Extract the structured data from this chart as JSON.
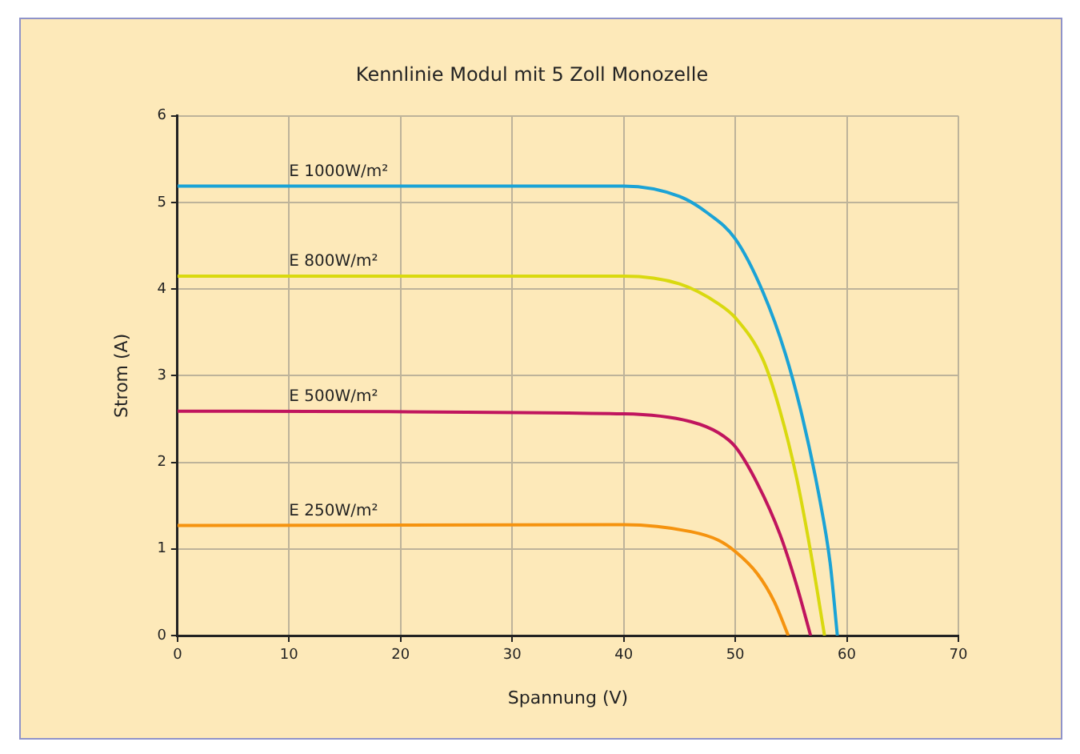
{
  "chart_data": {
    "type": "line",
    "title": "Kennlinie Modul mit 5 Zoll Monozelle",
    "xlabel": "Spannung (V)",
    "ylabel": "Strom (A)",
    "xlim": [
      0,
      70
    ],
    "xticks": [
      0,
      10,
      20,
      30,
      40,
      50,
      60,
      70
    ],
    "ylim": [
      0,
      6
    ],
    "yticks": [
      0,
      1,
      2,
      3,
      4,
      5,
      6
    ],
    "grid": true,
    "legend": false,
    "marker": "none",
    "line_style": "solid",
    "series": [
      {
        "name": "E 1000W/m²",
        "color": "#1ba3d6",
        "x": [
          0,
          40,
          45,
          47.5,
          50,
          52.5,
          54.5,
          56,
          57.5,
          58.5,
          59.15
        ],
        "values": [
          5.19,
          5.19,
          5.07,
          4.88,
          4.58,
          3.96,
          3.25,
          2.53,
          1.62,
          0.84,
          0
        ]
      },
      {
        "name": "E 800W/m²",
        "color": "#d9d90f",
        "x": [
          0,
          40,
          45,
          48.5,
          50,
          52.5,
          54,
          55.5,
          56.75,
          58
        ],
        "values": [
          4.15,
          4.15,
          4.06,
          3.83,
          3.67,
          3.18,
          2.6,
          1.82,
          0.97,
          0
        ]
      },
      {
        "name": "E 500W/m²",
        "color": "#c0155e",
        "x": [
          0,
          40,
          46,
          48.5,
          50,
          52,
          54,
          55.5,
          56.75
        ],
        "values": [
          2.59,
          2.56,
          2.47,
          2.34,
          2.18,
          1.75,
          1.17,
          0.58,
          0
        ]
      },
      {
        "name": "E 250W/m²",
        "color": "#f5930f",
        "x": [
          0,
          40,
          46,
          48.5,
          50,
          52,
          53.5,
          54.75
        ],
        "values": [
          1.27,
          1.28,
          1.2,
          1.1,
          0.97,
          0.71,
          0.39,
          0
        ]
      }
    ]
  }
}
